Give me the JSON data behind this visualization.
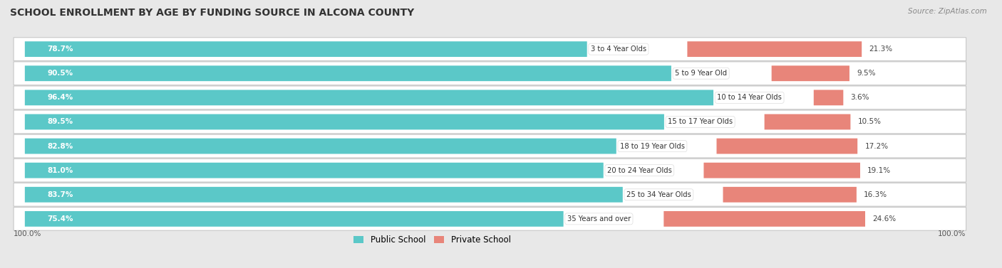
{
  "title": "SCHOOL ENROLLMENT BY AGE BY FUNDING SOURCE IN ALCONA COUNTY",
  "source": "Source: ZipAtlas.com",
  "categories": [
    "3 to 4 Year Olds",
    "5 to 9 Year Old",
    "10 to 14 Year Olds",
    "15 to 17 Year Olds",
    "18 to 19 Year Olds",
    "20 to 24 Year Olds",
    "25 to 34 Year Olds",
    "35 Years and over"
  ],
  "public_values": [
    78.7,
    90.5,
    96.4,
    89.5,
    82.8,
    81.0,
    83.7,
    75.4
  ],
  "private_values": [
    21.3,
    9.5,
    3.6,
    10.5,
    17.2,
    19.1,
    16.3,
    24.6
  ],
  "public_color": "#5bc8c8",
  "private_color": "#e8857a",
  "bg_color": "#e8e8e8",
  "row_bg_color": "#ffffff",
  "title_fontsize": 10,
  "bar_height": 0.62,
  "legend_public": "Public School",
  "legend_private": "Private School",
  "left_axis_label": "100.0%",
  "right_axis_label": "100.0%",
  "total_bar_width": 100.0,
  "scale": 0.01
}
